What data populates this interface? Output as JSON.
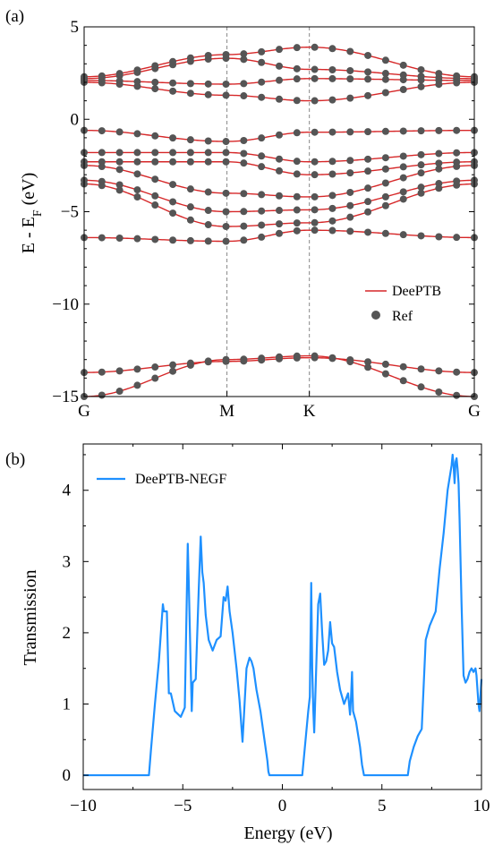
{
  "chart_data": [
    {
      "panel_label": "(a)",
      "type": "line",
      "ylabel_parts": [
        "E - E",
        "F",
        " (eV)"
      ],
      "ylim": [
        -15,
        5
      ],
      "yticks": [
        5,
        0,
        -5,
        -10,
        -15
      ],
      "ytick_labels": [
        "5",
        "0",
        "−5",
        "−10",
        "−15"
      ],
      "kpath": [
        {
          "label": "G",
          "x": 0
        },
        {
          "label": "M",
          "x": 1
        },
        {
          "label": "K",
          "x": 1.577
        },
        {
          "label": "G",
          "x": 2.732
        }
      ],
      "grid": false,
      "legend_position": "bottom-right",
      "series": [
        {
          "name": "DeePTB",
          "style": "line",
          "color": "#d62728"
        },
        {
          "name": "Ref",
          "style": "marker",
          "color": "#555555"
        }
      ],
      "bands": [
        {
          "G": -15.0,
          "M": -13.0,
          "K": -12.8,
          "G_end": -15.0
        },
        {
          "G": -13.7,
          "M": -13.1,
          "K": -12.9,
          "G_end": -13.7
        },
        {
          "G": -6.4,
          "M": -6.6,
          "K": -6.0,
          "G_end": -6.4
        },
        {
          "G": -3.5,
          "M": -5.8,
          "K": -5.6,
          "G_end": -3.5
        },
        {
          "G": -3.3,
          "M": -5.0,
          "K": -4.9,
          "G_end": -3.3
        },
        {
          "G": -2.5,
          "M": -4.0,
          "K": -4.2,
          "G_end": -2.5
        },
        {
          "G": -2.3,
          "M": -2.3,
          "K": -3.0,
          "G_end": -2.3
        },
        {
          "G": -1.8,
          "M": -1.8,
          "K": -2.3,
          "G_end": -1.8
        },
        {
          "G": -0.6,
          "M": -1.2,
          "K": -0.7,
          "G_end": -0.6
        },
        {
          "G": 2.0,
          "M": 1.3,
          "K": 1.0,
          "G_end": 2.0
        },
        {
          "G": 2.1,
          "M": 1.9,
          "K": 2.2,
          "G_end": 2.1
        },
        {
          "G": 2.2,
          "M": 3.3,
          "K": 2.7,
          "G_end": 2.2
        },
        {
          "G": 2.3,
          "M": 3.5,
          "K": 3.9,
          "G_end": 2.3
        }
      ]
    },
    {
      "panel_label": "(b)",
      "type": "line",
      "xlabel": "Energy (eV)",
      "ylabel": "Transmission",
      "xlim": [
        -10,
        10
      ],
      "ylim": [
        -0.2,
        4.65
      ],
      "xticks": [
        -10,
        -5,
        0,
        5,
        10
      ],
      "xtick_labels": [
        "−10",
        "−5",
        "0",
        "5",
        "10"
      ],
      "yticks": [
        0,
        1,
        2,
        3,
        4
      ],
      "ytick_labels": [
        "0",
        "1",
        "2",
        "3",
        "4"
      ],
      "grid": false,
      "legend_position": "top-left",
      "series": [
        {
          "name": "DeePTB-NEGF",
          "color": "#1e90ff",
          "x": [
            -10,
            -6.7,
            -6.6,
            -6.4,
            -6.2,
            -6.0,
            -5.95,
            -5.8,
            -5.7,
            -5.6,
            -5.4,
            -5.1,
            -4.9,
            -4.75,
            -4.7,
            -4.55,
            -4.5,
            -4.35,
            -4.2,
            -4.1,
            -4.02,
            -3.95,
            -3.85,
            -3.7,
            -3.5,
            -3.3,
            -3.1,
            -2.95,
            -2.85,
            -2.75,
            -2.65,
            -2.5,
            -2.3,
            -2.15,
            -2.0,
            -1.8,
            -1.65,
            -1.55,
            -1.45,
            -1.3,
            -1.1,
            -0.9,
            -0.75,
            -0.7,
            -0.65,
            1.0,
            1.1,
            1.2,
            1.3,
            1.38,
            1.45,
            1.5,
            1.55,
            1.6,
            1.7,
            1.8,
            1.9,
            2.0,
            2.1,
            2.2,
            2.3,
            2.4,
            2.5,
            2.6,
            2.75,
            2.9,
            3.1,
            3.3,
            3.4,
            3.45,
            3.5,
            3.55,
            3.7,
            3.9,
            4.0,
            4.1,
            6.3,
            6.4,
            6.6,
            6.8,
            7.0,
            7.2,
            7.4,
            7.7,
            7.9,
            8.1,
            8.3,
            8.5,
            8.55,
            8.6,
            8.65,
            8.7,
            8.75,
            8.8,
            8.85,
            8.9,
            9.0,
            9.1,
            9.2,
            9.3,
            9.4,
            9.5,
            9.6,
            9.7,
            9.75,
            9.8,
            9.85,
            9.9,
            10.0
          ],
          "y": [
            0,
            0,
            0.35,
            1.0,
            1.6,
            2.4,
            2.3,
            2.3,
            1.15,
            1.15,
            0.9,
            0.82,
            0.95,
            3.25,
            2.7,
            0.9,
            1.3,
            1.35,
            2.6,
            3.35,
            2.85,
            2.7,
            2.25,
            1.9,
            1.75,
            1.9,
            1.95,
            2.5,
            2.45,
            2.65,
            2.3,
            2.0,
            1.5,
            1.05,
            0.47,
            1.5,
            1.65,
            1.6,
            1.5,
            1.2,
            0.9,
            0.5,
            0.2,
            0.05,
            0,
            0,
            0.3,
            0.6,
            0.9,
            1.1,
            2.7,
            1.5,
            0.95,
            0.6,
            1.5,
            2.4,
            2.55,
            2.0,
            1.55,
            1.6,
            1.75,
            2.15,
            1.85,
            1.8,
            1.45,
            1.2,
            1.0,
            1.15,
            0.85,
            1.1,
            1.45,
            0.9,
            0.75,
            0.4,
            0.15,
            0,
            0,
            0.2,
            0.4,
            0.55,
            0.65,
            1.9,
            2.1,
            2.3,
            2.9,
            3.4,
            4.0,
            4.35,
            4.5,
            4.35,
            4.1,
            4.4,
            4.45,
            4.3,
            4.1,
            3.6,
            2.4,
            1.4,
            1.3,
            1.35,
            1.45,
            1.5,
            1.45,
            1.5,
            1.4,
            1.2,
            1.0,
            0.9,
            1.35
          ]
        }
      ]
    }
  ]
}
